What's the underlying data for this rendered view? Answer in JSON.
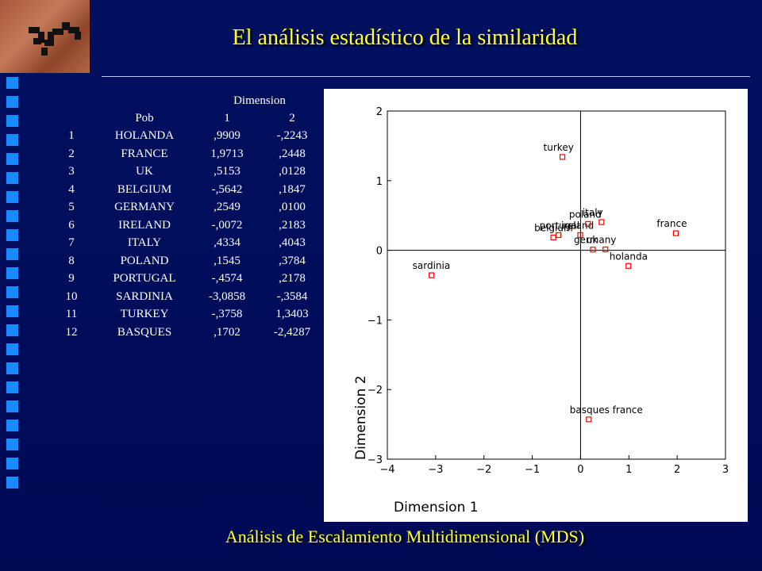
{
  "slide": {
    "title": "El análisis estadístico de la similaridad",
    "caption": "Análisis de Escalamiento Multidimensional (MDS)"
  },
  "colors": {
    "background": "#000d5e",
    "title": "#ffff33",
    "sidebar_square": "#1a8bff",
    "marker": "#ff0000"
  },
  "icons": [
    "university-logo"
  ],
  "table": {
    "header_group": "Dimension",
    "headers": [
      "",
      "Pob",
      "1",
      "2"
    ],
    "rows": [
      [
        "1",
        "HOLANDA",
        ",9909",
        "-,2243"
      ],
      [
        "2",
        "FRANCE",
        "1,9713",
        ",2448"
      ],
      [
        "3",
        "UK",
        ",5153",
        ",0128"
      ],
      [
        "4",
        "BELGIUM",
        "-,5642",
        ",1847"
      ],
      [
        "5",
        "GERMANY",
        ",2549",
        ",0100"
      ],
      [
        "6",
        "IRELAND",
        "-,0072",
        ",2183"
      ],
      [
        "7",
        "ITALY",
        ",4334",
        ",4043"
      ],
      [
        "8",
        "POLAND",
        ",1545",
        ",3784"
      ],
      [
        "9",
        "PORTUGAL",
        "-,4574",
        ",2178"
      ],
      [
        "10",
        "SARDINIA",
        "-3,0858",
        "-,3584"
      ],
      [
        "11",
        "TURKEY",
        "-,3758",
        "1,3403"
      ],
      [
        "12",
        "BASQUES",
        ",1702",
        "-2,4287"
      ]
    ]
  },
  "chart_data": {
    "type": "scatter",
    "xlabel": "Dimension 1",
    "ylabel": "Dimension 2",
    "xlim": [
      -4,
      3
    ],
    "ylim": [
      -3,
      2
    ],
    "xticks": [
      "−4",
      "−3",
      "−2",
      "−1",
      "0",
      "1",
      "2",
      "3"
    ],
    "yticks": [
      "2",
      "1",
      "0",
      "−1",
      "−2",
      "−3"
    ],
    "grid": false,
    "points": [
      {
        "label": "holanda",
        "x": 0.9909,
        "y": -0.2243
      },
      {
        "label": "france",
        "x": 1.9713,
        "y": 0.2448
      },
      {
        "label": "uk",
        "x": 0.5153,
        "y": 0.0128
      },
      {
        "label": "belgium",
        "x": -0.5642,
        "y": 0.1847
      },
      {
        "label": "germany",
        "x": 0.2549,
        "y": 0.01
      },
      {
        "label": "ireland",
        "x": -0.0072,
        "y": 0.2183
      },
      {
        "label": "italy",
        "x": 0.4334,
        "y": 0.4043
      },
      {
        "label": "poland",
        "x": 0.1545,
        "y": 0.3784
      },
      {
        "label": "portugal",
        "x": -0.4574,
        "y": 0.2178
      },
      {
        "label": "sardinia",
        "x": -3.0858,
        "y": -0.3584
      },
      {
        "label": "turkey",
        "x": -0.3758,
        "y": 1.3403
      },
      {
        "label": "basques france",
        "x": 0.1702,
        "y": -2.4287
      }
    ]
  }
}
